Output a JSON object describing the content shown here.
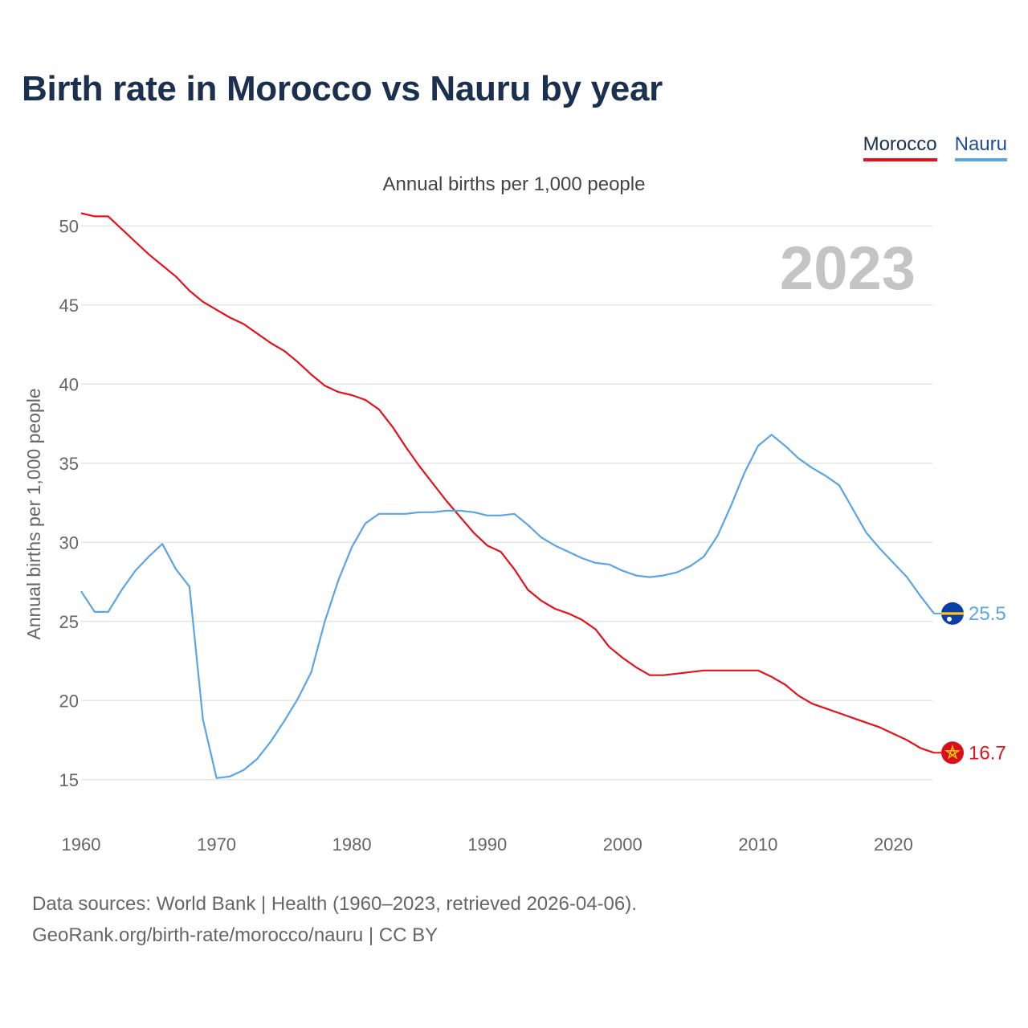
{
  "title": "Birth rate in Morocco vs Nauru by year",
  "legend": {
    "morocco": "Morocco",
    "nauru": "Nauru"
  },
  "subtitle": "Annual births per 1,000 people",
  "year_watermark": "2023",
  "footer": {
    "line1": "Data sources: World Bank | Health (1960–2023, retrieved 2026-04-06).",
    "line2": "GeoRank.org/birth-rate/morocco/nauru | CC BY"
  },
  "colors": {
    "morocco": "#e8101a",
    "nauru": "#5ba4e5",
    "title": "#1b2f4f",
    "grid": "#e6e6e6"
  },
  "chart_data": {
    "type": "line",
    "title": "Birth rate in Morocco vs Nauru by year",
    "xlabel": "",
    "ylabel": "Annual births per 1,000 people",
    "xlim": [
      1960,
      2023
    ],
    "ylim": [
      12.5,
      52.5
    ],
    "grid": true,
    "legend_position": "top-right",
    "xticks": [
      1960,
      1970,
      1980,
      1990,
      2000,
      2010,
      2020
    ],
    "yticks": [
      15,
      20,
      25,
      30,
      35,
      40,
      45,
      50
    ],
    "x": [
      1960,
      1961,
      1962,
      1963,
      1964,
      1965,
      1966,
      1967,
      1968,
      1969,
      1970,
      1971,
      1972,
      1973,
      1974,
      1975,
      1976,
      1977,
      1978,
      1979,
      1980,
      1981,
      1982,
      1983,
      1984,
      1985,
      1986,
      1987,
      1988,
      1989,
      1990,
      1991,
      1992,
      1993,
      1994,
      1995,
      1996,
      1997,
      1998,
      1999,
      2000,
      2001,
      2002,
      2003,
      2004,
      2005,
      2006,
      2007,
      2008,
      2009,
      2010,
      2011,
      2012,
      2013,
      2014,
      2015,
      2016,
      2017,
      2018,
      2019,
      2020,
      2021,
      2022,
      2023
    ],
    "series": [
      {
        "name": "Morocco",
        "end_label": "16.7",
        "values": [
          50.8,
          50.6,
          50.6,
          49.8,
          49.0,
          48.2,
          47.5,
          46.8,
          45.9,
          45.2,
          44.7,
          44.2,
          43.8,
          43.2,
          42.6,
          42.1,
          41.4,
          40.6,
          39.9,
          39.5,
          39.3,
          39.0,
          38.4,
          37.3,
          36.0,
          34.8,
          33.7,
          32.6,
          31.6,
          30.6,
          29.8,
          29.4,
          28.3,
          27.0,
          26.3,
          25.8,
          25.5,
          25.1,
          24.5,
          23.4,
          22.7,
          22.1,
          21.6,
          21.6,
          21.7,
          21.8,
          21.9,
          21.9,
          21.9,
          21.9,
          21.9,
          21.5,
          21.0,
          20.3,
          19.8,
          19.5,
          19.2,
          18.9,
          18.6,
          18.3,
          17.9,
          17.5,
          17.0,
          16.7
        ]
      },
      {
        "name": "Nauru",
        "end_label": "25.5",
        "values": [
          26.9,
          25.6,
          25.6,
          27.0,
          28.2,
          29.1,
          29.9,
          28.3,
          27.2,
          18.8,
          15.1,
          15.2,
          15.6,
          16.3,
          17.4,
          18.7,
          20.1,
          21.8,
          25.0,
          27.6,
          29.7,
          31.2,
          31.8,
          31.8,
          31.8,
          31.9,
          31.9,
          32.0,
          32.0,
          31.9,
          31.7,
          31.7,
          31.8,
          31.1,
          30.3,
          29.8,
          29.4,
          29.0,
          28.7,
          28.6,
          28.2,
          27.9,
          27.8,
          27.9,
          28.1,
          28.5,
          29.1,
          30.4,
          32.3,
          34.4,
          36.1,
          36.8,
          36.1,
          35.3,
          34.7,
          34.2,
          33.6,
          32.1,
          30.6,
          29.6,
          28.7,
          27.8,
          26.6,
          25.5
        ]
      }
    ]
  }
}
